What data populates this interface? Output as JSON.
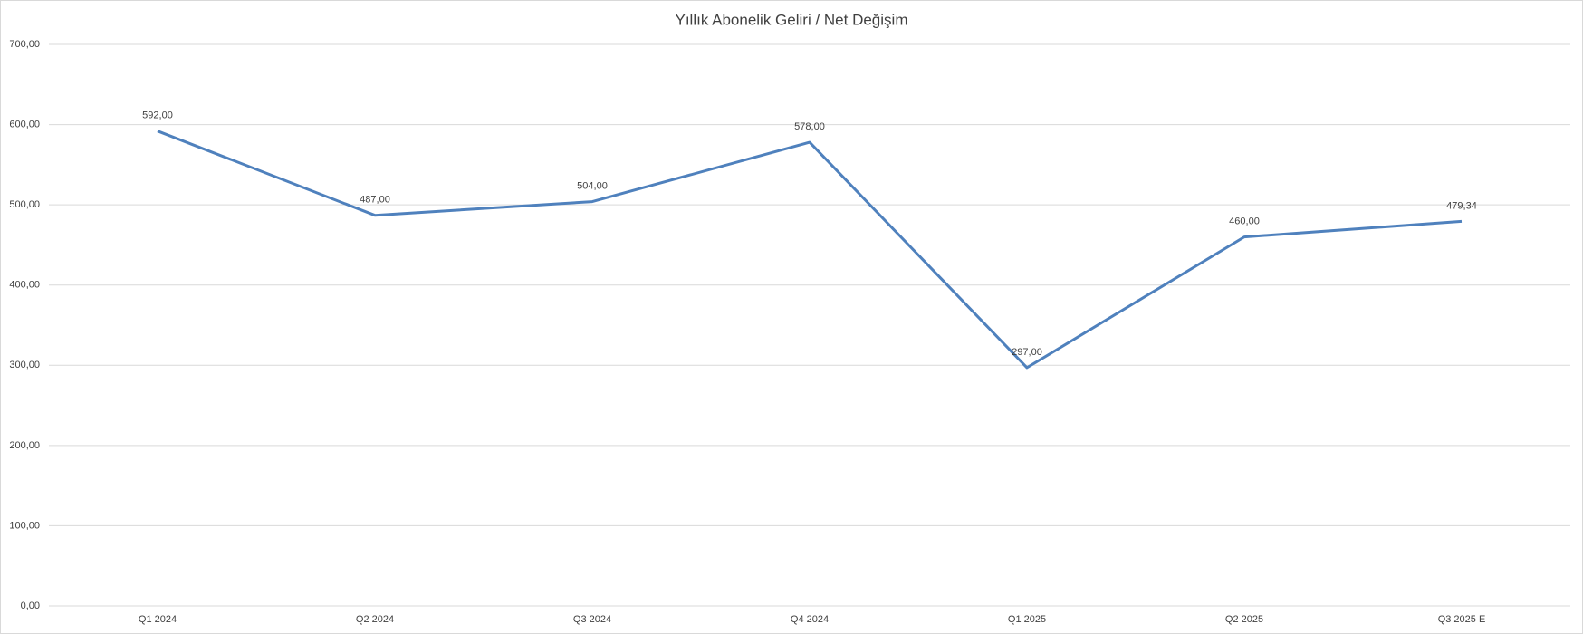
{
  "chart_data": {
    "type": "line",
    "title": "Yıllık Abonelik Geliri / Net Değişim",
    "categories": [
      "Q1 2024",
      "Q2 2024",
      "Q3 2024",
      "Q4 2024",
      "Q1 2025",
      "Q2 2025",
      "Q3 2025 E"
    ],
    "values": [
      592,
      487,
      504,
      578,
      297,
      460,
      479.34
    ],
    "value_labels": [
      "592,00",
      "487,00",
      "504,00",
      "578,00",
      "297,00",
      "460,00",
      "479,34"
    ],
    "color": "#4f81bd",
    "ylim": [
      0,
      700
    ],
    "yticks": [
      {
        "value": 0,
        "label": "0,00"
      },
      {
        "value": 100,
        "label": "100,00"
      },
      {
        "value": 200,
        "label": "200,00"
      },
      {
        "value": 300,
        "label": "300,00"
      },
      {
        "value": 400,
        "label": "400,00"
      },
      {
        "value": 500,
        "label": "500,00"
      },
      {
        "value": 600,
        "label": "600,00"
      },
      {
        "value": 700,
        "label": "700,00"
      }
    ],
    "grid": true
  }
}
